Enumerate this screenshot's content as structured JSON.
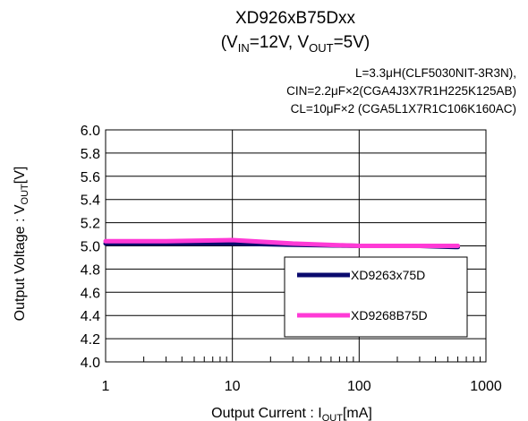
{
  "chart_data": {
    "type": "line",
    "title": "XD926xB75Dxx",
    "subtitle": {
      "open": "(V",
      "vin_sub": "IN",
      "mid": "=12V, V",
      "vout_sub": "OUT",
      "close": "=5V)"
    },
    "conditions": [
      "L=3.3μH(CLF5030NIT-3R3N),",
      "CIN=2.2μF×2(CGA4J3X7R1H225K125AB)",
      "CL=10μF×2 (CGA5L1X7R1C106K160AC)"
    ],
    "xlabel": {
      "main": "Output Current : I",
      "sub": "OUT",
      "unit": "[mA]"
    },
    "ylabel": {
      "main": "Output Voltage : V",
      "sub": "OUT",
      "unit": "[V]"
    },
    "xscale": "log",
    "xlim": [
      1,
      1000
    ],
    "ylim": [
      4.0,
      6.0
    ],
    "x_ticks": [
      "1",
      "10",
      "100",
      "1000"
    ],
    "y_ticks": [
      "4.0",
      "4.2",
      "4.4",
      "4.6",
      "4.8",
      "5.0",
      "5.2",
      "5.4",
      "5.6",
      "5.8",
      "6.0"
    ],
    "grid": true,
    "legend_position": "lower-right",
    "series": [
      {
        "name": "XD9263x75D",
        "color": "#0a0a6e",
        "x": [
          1,
          3,
          10,
          30,
          100,
          300,
          600
        ],
        "y": [
          5.02,
          5.02,
          5.02,
          5.01,
          5.0,
          5.0,
          4.99
        ]
      },
      {
        "name": "XD9268B75D",
        "color": "#ff3ad6",
        "x": [
          1,
          3,
          10,
          30,
          100,
          300,
          600
        ],
        "y": [
          5.04,
          5.04,
          5.05,
          5.02,
          5.0,
          5.0,
          5.0
        ]
      }
    ]
  }
}
